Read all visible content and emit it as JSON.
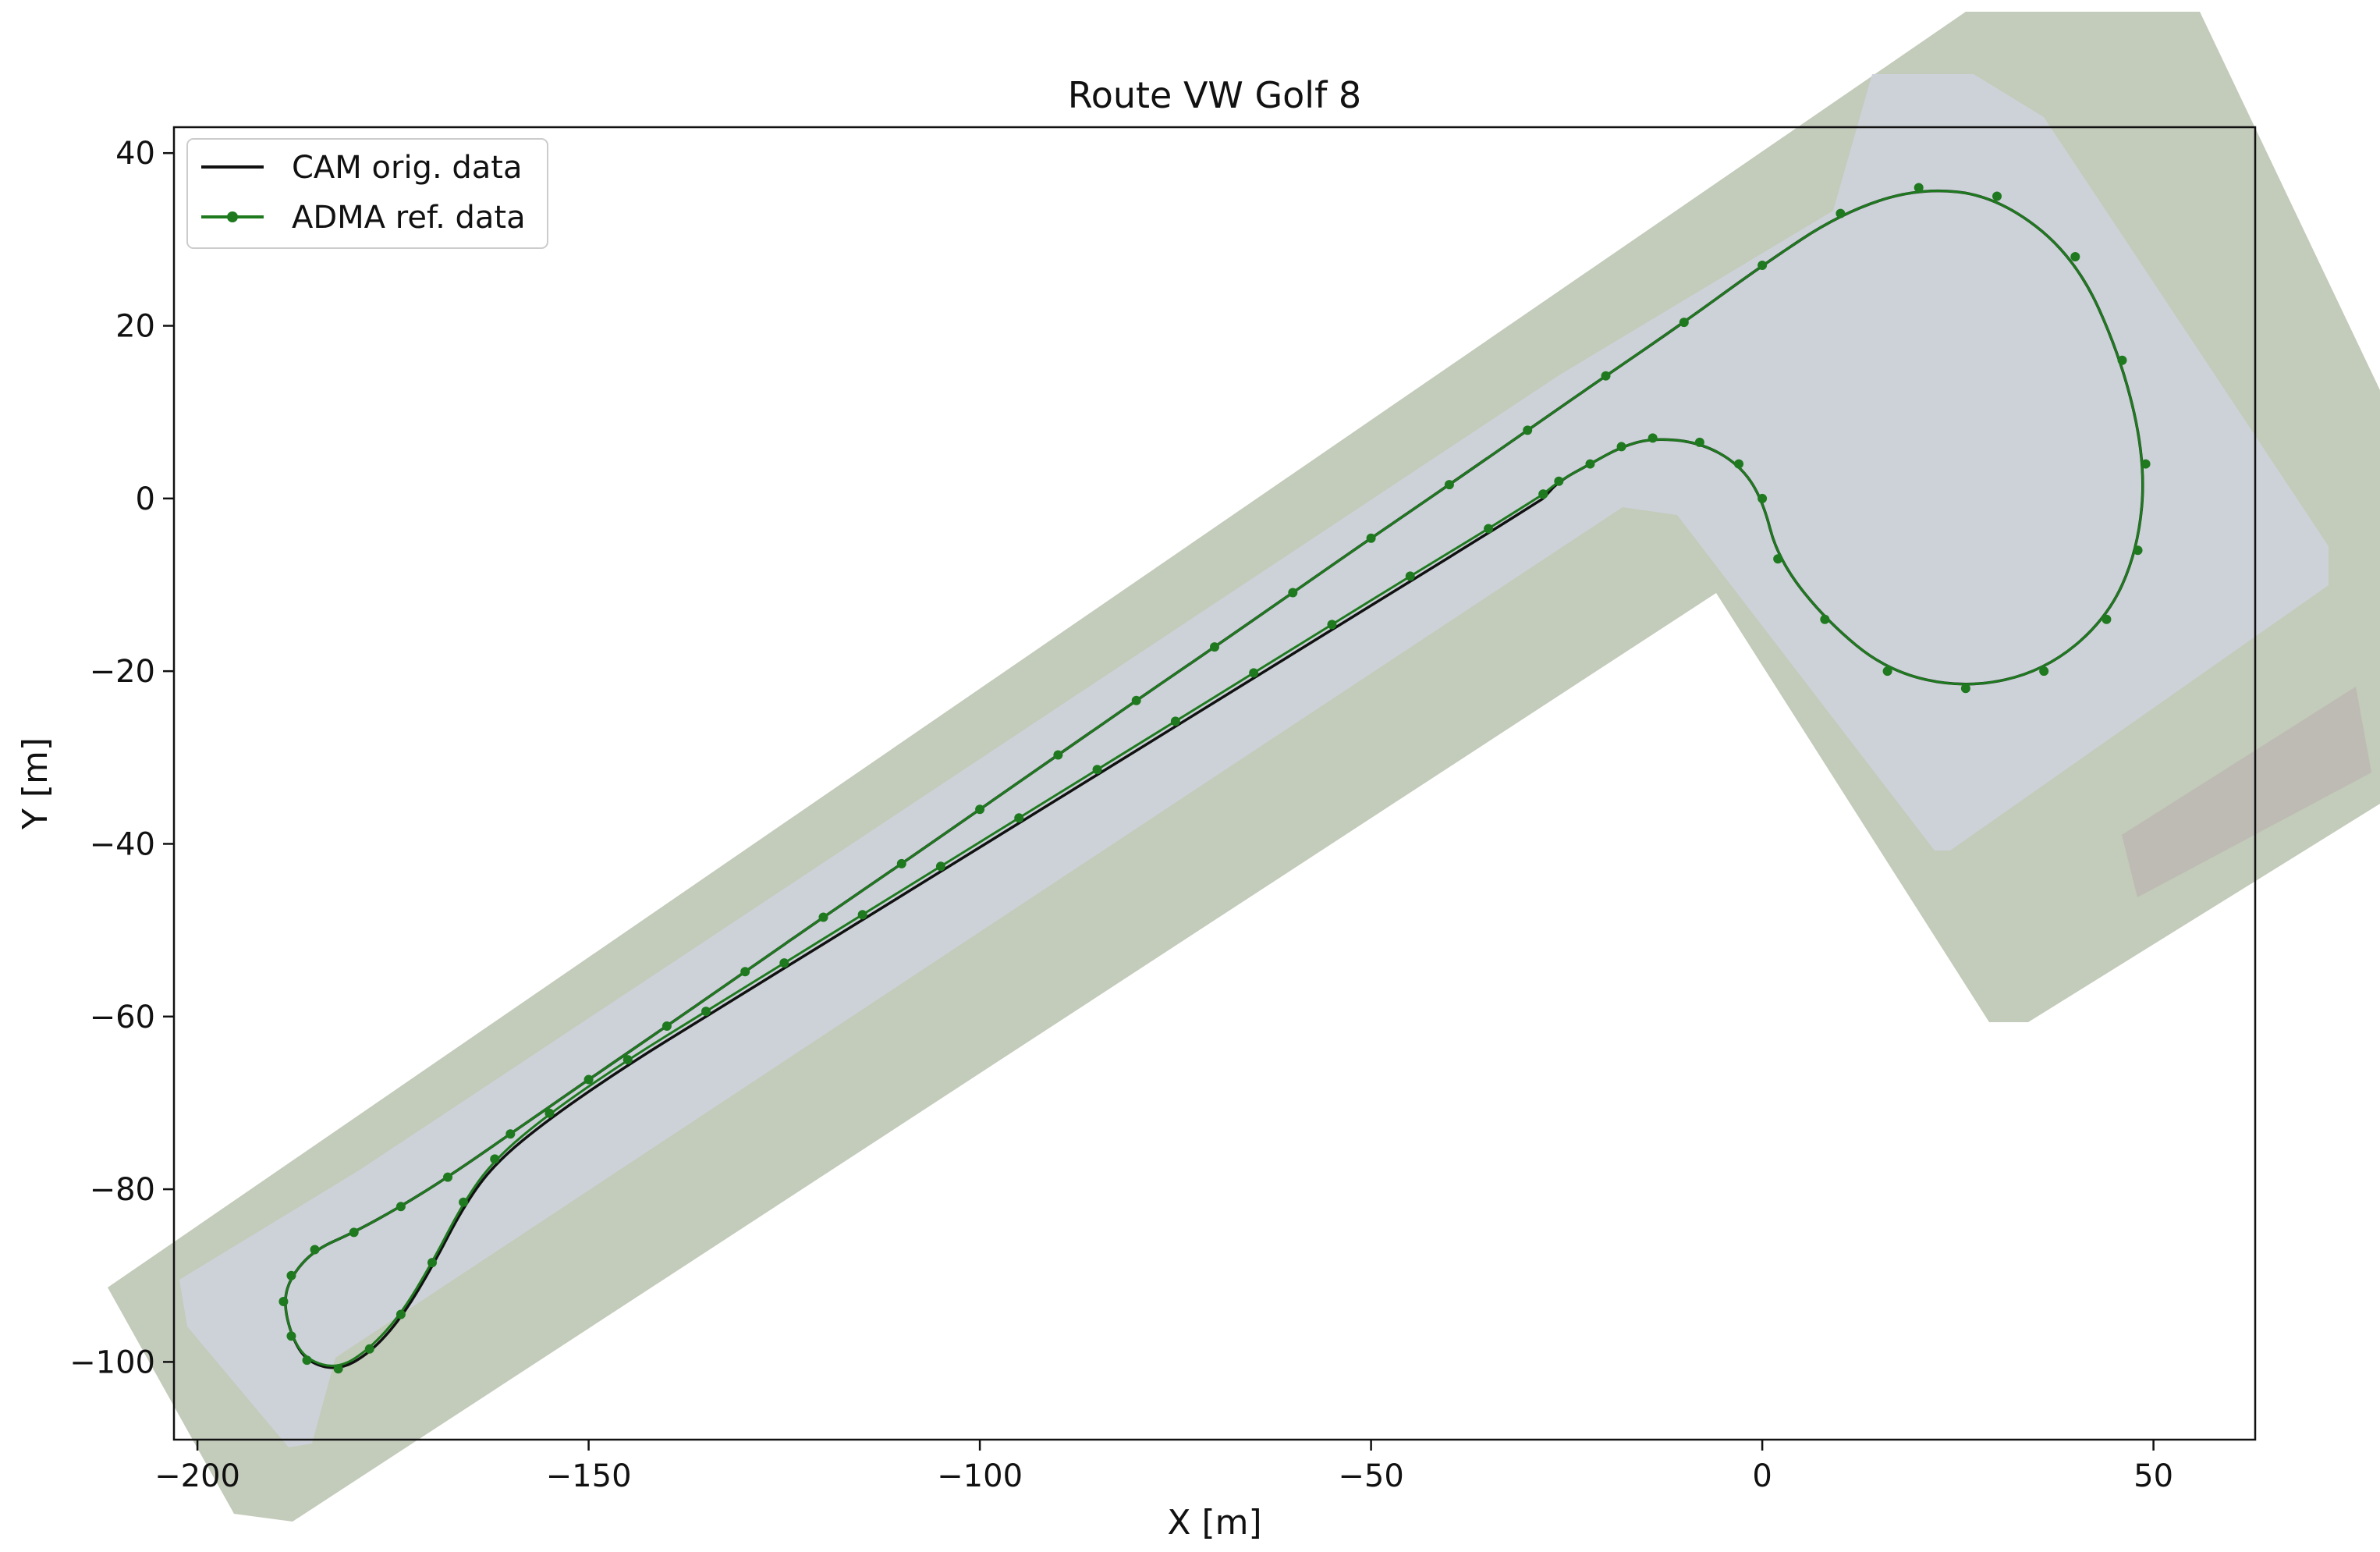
{
  "chart_data": {
    "type": "line",
    "title": "Route VW Golf 8",
    "xlabel": "X [m]",
    "ylabel": "Y [m]",
    "xlim": [
      -203,
      63
    ],
    "ylim": [
      -109,
      43
    ],
    "xticks": [
      -200,
      -150,
      -100,
      -50,
      0,
      50
    ],
    "yticks": [
      40,
      20,
      0,
      -20,
      -40,
      -60,
      -80,
      -100
    ],
    "xtick_labels": [
      "−200",
      "−150",
      "−100",
      "−50",
      "0",
      "50"
    ],
    "ytick_labels": [
      "40",
      "20",
      "0",
      "−20",
      "−40",
      "−60",
      "−80",
      "−100"
    ],
    "grid": false,
    "legend_position": "top-left",
    "background_image": "aerial photo of test track",
    "colors": {
      "cam": "#111111",
      "adma": "#1f7a1f",
      "track_surface": "#cfd4dc",
      "grass": "#9aa88a"
    },
    "series": [
      {
        "name": "CAM orig. data",
        "color": "#111111",
        "marker": "none",
        "x": [
          -28,
          -35,
          -45,
          -55,
          -65,
          -75,
          -85,
          -95,
          -105,
          -115,
          -125,
          -135,
          -145,
          -155,
          -162,
          -166,
          -170,
          -174,
          -178,
          -182,
          -186,
          -188,
          -189,
          -188,
          -185,
          -180,
          -174,
          -168,
          -160,
          -150,
          -140,
          -130,
          -120,
          -110,
          -100,
          -90,
          -80,
          -70,
          -60,
          -50,
          -40,
          -30,
          -20,
          -10,
          0,
          10,
          20,
          30,
          40,
          46,
          49,
          48,
          44,
          36,
          26,
          16,
          8,
          2,
          0,
          -3,
          -8,
          -14,
          -18,
          -22,
          -26,
          -28
        ],
        "y": [
          0,
          -4,
          -9.6,
          -15.2,
          -20.8,
          -26.4,
          -32,
          -37.6,
          -43.2,
          -48.8,
          -54.4,
          -60,
          -65.6,
          -71.8,
          -77,
          -82,
          -89,
          -95,
          -99,
          -101,
          -100,
          -97,
          -93,
          -90,
          -87,
          -85,
          -82,
          -78.6,
          -73.6,
          -67.3,
          -61.1,
          -54.8,
          -48.5,
          -42.3,
          -36,
          -29.7,
          -23.4,
          -17.2,
          -10.9,
          -4.6,
          1.6,
          7.9,
          14.2,
          20.4,
          27,
          33,
          36,
          35,
          28,
          16,
          4,
          -6,
          -14,
          -20,
          -22,
          -20,
          -14,
          -7,
          0,
          4,
          6.5,
          7,
          6,
          4,
          2,
          0
        ]
      },
      {
        "name": "ADMA ref. data",
        "color": "#1f7a1f",
        "marker": "dot",
        "x": [
          -28,
          -35,
          -45,
          -55,
          -65,
          -75,
          -85,
          -95,
          -105,
          -115,
          -125,
          -135,
          -145,
          -155,
          -162,
          -166,
          -170,
          -174,
          -178,
          -182,
          -186,
          -188,
          -189,
          -188,
          -185,
          -180,
          -174,
          -168,
          -160,
          -150,
          -140,
          -130,
          -120,
          -110,
          -100,
          -90,
          -80,
          -70,
          -60,
          -50,
          -40,
          -30,
          -20,
          -10,
          0,
          10,
          20,
          30,
          40,
          46,
          49,
          48,
          44,
          36,
          26,
          16,
          8,
          2,
          0,
          -3,
          -8,
          -14,
          -18,
          -22,
          -26,
          -28
        ],
        "y": [
          0.5,
          -3.5,
          -9,
          -14.6,
          -20.2,
          -25.8,
          -31.4,
          -37,
          -42.6,
          -48.2,
          -53.8,
          -59.4,
          -65,
          -71.2,
          -76.5,
          -81.5,
          -88.5,
          -94.5,
          -98.5,
          -100.8,
          -99.8,
          -97,
          -93,
          -90,
          -87,
          -85,
          -82,
          -78.6,
          -73.6,
          -67.3,
          -61.1,
          -54.8,
          -48.5,
          -42.3,
          -36,
          -29.7,
          -23.4,
          -17.2,
          -10.9,
          -4.6,
          1.6,
          7.9,
          14.2,
          20.4,
          27,
          33,
          36,
          35,
          28,
          16,
          4,
          -6,
          -14,
          -20,
          -22,
          -20,
          -14,
          -7,
          0,
          4,
          6.5,
          7,
          6,
          4,
          2,
          0.5
        ]
      }
    ]
  }
}
